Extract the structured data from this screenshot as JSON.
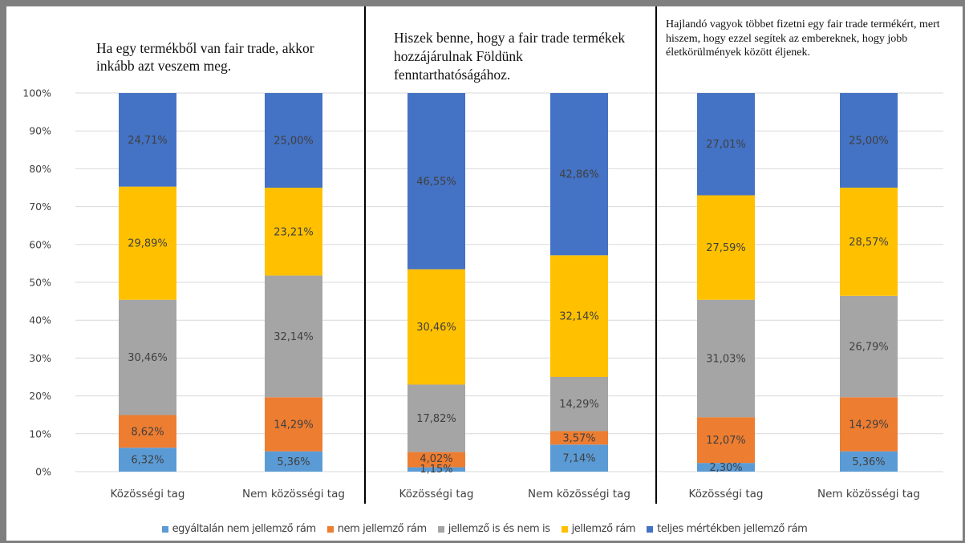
{
  "colors": {
    "egyaltalan": "#5b9bd5",
    "nem_jellemzo": "#ed7d31",
    "kozepes": "#a5a5a5",
    "jellemzo": "#ffc000",
    "teljes": "#4472c4"
  },
  "chart_data": {
    "type": "bar",
    "stacked": true,
    "ylim": [
      0,
      100
    ],
    "yticks": [
      "0%",
      "10%",
      "20%",
      "30%",
      "40%",
      "50%",
      "60%",
      "70%",
      "80%",
      "90%",
      "100%"
    ],
    "categories": [
      "Közösségi tag",
      "Nem közösségi tag"
    ],
    "legend_position": "bottom",
    "legend": [
      "egyáltalán nem jellemző rám",
      "nem jellemző rám",
      "jellemző is és nem is",
      "jellemző rám",
      "teljes mértékben jellemző rám"
    ],
    "panels": [
      {
        "title": "Ha egy termékből van fair trade, akkor inkább azt veszem meg.",
        "bars": [
          {
            "category": "Közösségi tag",
            "values": [
              6.32,
              8.62,
              30.46,
              29.89,
              24.71
            ],
            "labels": [
              "6,32%",
              "8,62%",
              "30,46%",
              "29,89%",
              "24,71%"
            ]
          },
          {
            "category": "Nem közösségi tag",
            "values": [
              5.36,
              14.29,
              32.14,
              23.21,
              25.0
            ],
            "labels": [
              "5,36%",
              "14,29%",
              "32,14%",
              "23,21%",
              "25,00%"
            ]
          }
        ]
      },
      {
        "title": "Hiszek benne, hogy a fair trade termékek hozzájárulnak Földünk fenntarthatóságához.",
        "bars": [
          {
            "category": "Közösségi tag",
            "values": [
              1.15,
              4.02,
              17.82,
              30.46,
              46.55
            ],
            "labels": [
              "1,15%",
              "4,02%",
              "17,82%",
              "30,46%",
              "46,55%"
            ]
          },
          {
            "category": "Nem közösségi tag",
            "values": [
              7.14,
              3.57,
              14.29,
              32.14,
              42.86
            ],
            "labels": [
              "7,14%",
              "3,57%",
              "14,29%",
              "32,14%",
              "42,86%"
            ]
          }
        ]
      },
      {
        "title": "Hajlandó vagyok többet fizetni egy fair trade termékért, mert hiszem, hogy ezzel segítek az embereknek, hogy jobb életkörülmények között éljenek.",
        "bars": [
          {
            "category": "Közösségi tag",
            "values": [
              2.3,
              12.07,
              31.03,
              27.59,
              27.01
            ],
            "labels": [
              "2,30%",
              "12,07%",
              "31,03%",
              "27,59%",
              "27,01%"
            ]
          },
          {
            "category": "Nem közösségi tag",
            "values": [
              5.36,
              14.29,
              26.79,
              28.57,
              25.0
            ],
            "labels": [
              "5,36%",
              "14,29%",
              "26,79%",
              "28,57%",
              "25,00%"
            ]
          }
        ]
      }
    ]
  }
}
